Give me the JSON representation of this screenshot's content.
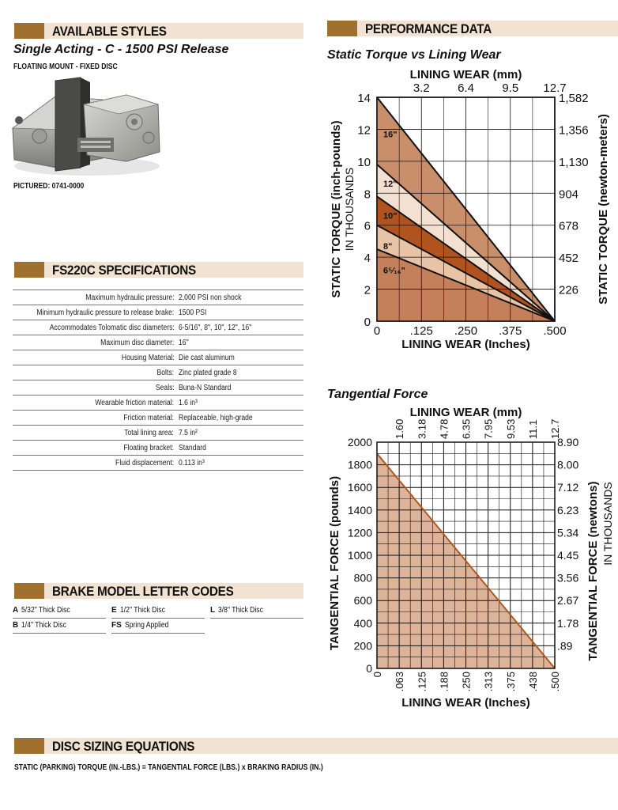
{
  "sections": {
    "available_styles": "AVAILABLE STYLES",
    "performance_data": "PERFORMANCE DATA",
    "specifications": "FS220C SPECIFICATIONS",
    "letter_codes": "BRAKE MODEL LETTER CODES",
    "disc_sizing": "DISC SIZING EQUATIONS"
  },
  "style": {
    "title": "Single Acting -  C - 1500 PSI Release",
    "mount": "FLOATING MOUNT - FIXED DISC",
    "pictured": "PICTURED: 0741-0000"
  },
  "specs": [
    {
      "label": "Maximum hydraulic pressure:",
      "value": "2,000 PSI non shock"
    },
    {
      "label": "Minimum hydraulic pressure to release brake:",
      "value": "1500 PSI"
    },
    {
      "label": "Accommodates Tolomatic disc diameters:",
      "value": "6-5/16\", 8\", 10\", 12\", 16\""
    },
    {
      "label": "Maximum disc diameter:",
      "value": "16\""
    },
    {
      "label": "Housing Material:",
      "value": "Die cast aluminum"
    },
    {
      "label": "Bolts:",
      "value": "Zinc plated grade 8"
    },
    {
      "label": "Seals:",
      "value": "Buna-N Standard"
    },
    {
      "label": "Wearable friction material:",
      "value": "1.6 in³"
    },
    {
      "label": "Friction material:",
      "value": "Replaceable, high-grade"
    },
    {
      "label": "Total lining area:",
      "value": "7.5 in²"
    },
    {
      "label": "Floating bracket:",
      "value": "Standard"
    },
    {
      "label": "Fluid displacement:",
      "value": "0.113 in³"
    }
  ],
  "letter_codes": [
    {
      "code": "A",
      "desc": "5/32\" Thick Disc"
    },
    {
      "code": "E",
      "desc": "1/2\" Thick Disc"
    },
    {
      "code": "L",
      "desc": "3/8\" Thick Disc"
    },
    {
      "code": "B",
      "desc": "1/4\" Thick Disc"
    },
    {
      "code": "FS",
      "desc": "Spring Applied"
    }
  ],
  "equation": "STATIC (PARKING) TORQUE (IN.-LBS.) = TANGENTIAL FORCE (LBS.) x BRAKING RADIUS (IN.)",
  "colors": {
    "band": "#f1e2d2",
    "swatch": "#a0702e",
    "band_16": "#c98e6a",
    "band_12": "#f4e0d1",
    "band_10": "#b0531e",
    "band_8": "#e9c3a6",
    "band_6": "#c4805a",
    "tangential_fill": "#ddb39a",
    "tangential_line": "#b05a1e"
  },
  "chart_data": [
    {
      "type": "area",
      "title": "Static Torque vs Lining Wear",
      "xlabel": "LINING WEAR (Inches)",
      "x2label": "LINING WEAR (mm)",
      "ylabel": "STATIC TORQUE (inch-pounds)",
      "ylabel_sub": "IN THOUSANDS",
      "y2label": "STATIC TORQUE (newton-meters)",
      "x_ticks": [
        "0",
        ".125",
        ".250",
        ".375",
        ".500"
      ],
      "x2_ticks": [
        "3.2",
        "6.4",
        "9.5",
        "12.7"
      ],
      "y_ticks": [
        "0",
        "2",
        "4",
        "6",
        "8",
        "10",
        "12",
        "14"
      ],
      "y2_ticks": [
        "226",
        "452",
        "678",
        "904",
        "1,130",
        "1,356",
        "1,582"
      ],
      "xlim": [
        0,
        0.5
      ],
      "ylim": [
        0,
        14
      ],
      "grid": true,
      "series": [
        {
          "name": "16\"",
          "x": [
            0,
            0.5
          ],
          "values": [
            14,
            0
          ]
        },
        {
          "name": "12\"",
          "x": [
            0,
            0.5
          ],
          "values": [
            9.8,
            0
          ]
        },
        {
          "name": "10\"",
          "x": [
            0,
            0.5
          ],
          "values": [
            7.8,
            0
          ]
        },
        {
          "name": "8\"",
          "x": [
            0,
            0.5
          ],
          "values": [
            6,
            0
          ]
        },
        {
          "name": "6⁵⁄₁₆\"",
          "x": [
            0,
            0.5
          ],
          "values": [
            4.5,
            0
          ]
        }
      ]
    },
    {
      "type": "area",
      "title": "Tangential Force",
      "xlabel": "LINING WEAR (Inches)",
      "x2label": "LINING WEAR (mm)",
      "ylabel": "TANGENTIAL FORCE (pounds)",
      "y2label": "TANGENTIAL FORCE (newtons)",
      "y2label_sub": "IN THOUSANDS",
      "x_ticks": [
        "0",
        ".063",
        ".125",
        ".188",
        ".250",
        ".313",
        ".375",
        ".438",
        ".500"
      ],
      "x2_ticks": [
        "1.60",
        "3.18",
        "4.78",
        "6.35",
        "7.95",
        "9.53",
        "11.1",
        "12.7"
      ],
      "y_ticks": [
        "0",
        "200",
        "400",
        "600",
        "800",
        "1000",
        "1200",
        "1400",
        "1600",
        "1800",
        "2000"
      ],
      "y2_ticks": [
        ".89",
        "1.78",
        "2.67",
        "3.56",
        "4.45",
        "5.34",
        "6.23",
        "7.12",
        "8.00",
        "8.90"
      ],
      "xlim": [
        0,
        0.5
      ],
      "ylim": [
        0,
        2000
      ],
      "grid": true,
      "series": [
        {
          "x": [
            0,
            0.5
          ],
          "values": [
            1900,
            0
          ]
        }
      ]
    }
  ]
}
